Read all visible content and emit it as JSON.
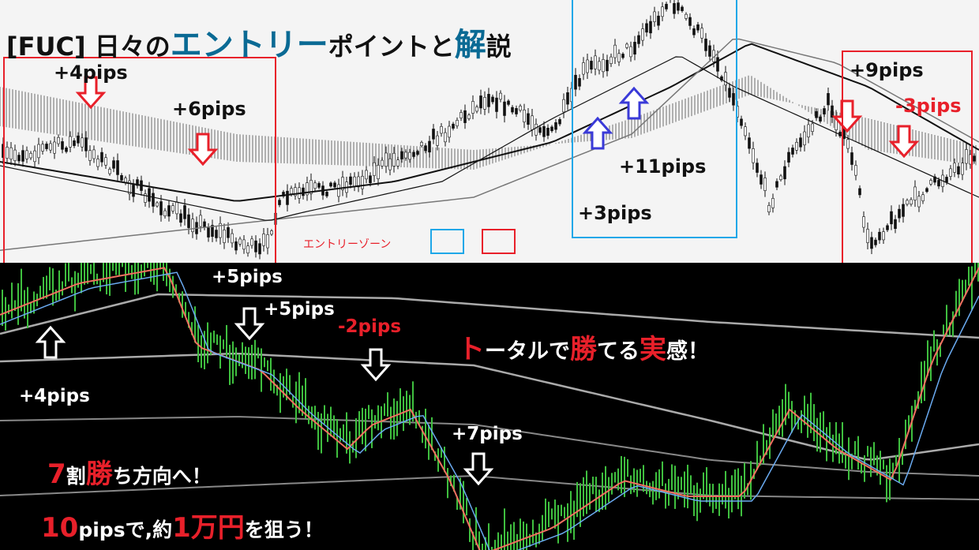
{
  "title": {
    "part1": "[FUC] 日々の",
    "accent1": "エントリー",
    "part2": "ポイントと",
    "accent2": "解",
    "part3": "説"
  },
  "colors": {
    "fuc_zone": "#e8202a",
    "blue_zone": "#1ea7e8",
    "title_accent": "#0a6a94",
    "bull_candle": "#4cd94c",
    "ma_red": "#f07060",
    "ma_blue": "#6aaaf0"
  },
  "legend": {
    "label": "エントリーゾーン",
    "swatches": [
      "blue-zone",
      "red-zone"
    ]
  },
  "top_labels": [
    "+4pips",
    "+6pips",
    "+11pips",
    "+3pips",
    "+9pips",
    "-3pips"
  ],
  "bottom_labels": [
    "+5pips",
    "+5pips",
    "-2pips",
    "+4pips",
    "+7pips"
  ],
  "slogans": {
    "s1": {
      "a": "ト",
      "b": "ータルで",
      "c": "勝",
      "d": "てる",
      "e": "実",
      "f": "感！"
    },
    "s2": {
      "a": "7",
      "b": "割",
      "c": "勝",
      "d": "ち方向へ！"
    },
    "s3": {
      "a": "10",
      "b": "pipsで,約",
      "c": "1万円",
      "d": "を狙う！"
    }
  }
}
